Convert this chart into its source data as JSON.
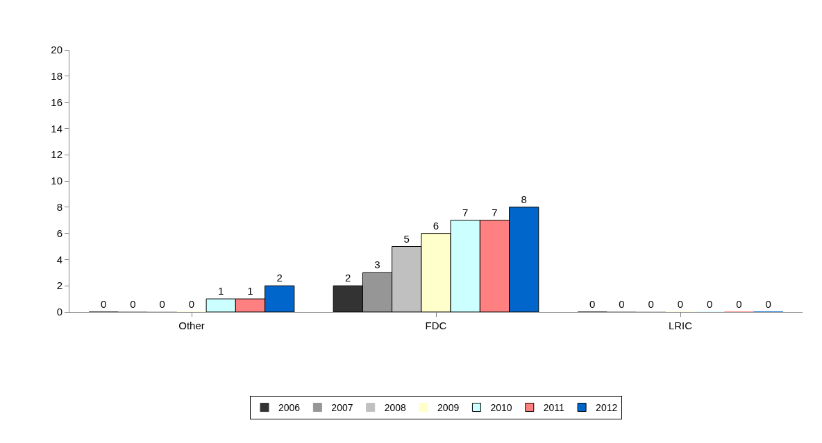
{
  "chart_data": {
    "type": "bar",
    "categories": [
      "Other",
      "FDC",
      "LRIC"
    ],
    "series": [
      {
        "name": "2006",
        "color": "#333333",
        "values": [
          0,
          2,
          0
        ]
      },
      {
        "name": "2007",
        "color": "#969696",
        "values": [
          0,
          3,
          0
        ]
      },
      {
        "name": "2008",
        "color": "#c0c0c0",
        "values": [
          0,
          5,
          0
        ]
      },
      {
        "name": "2009",
        "color": "#ffffcc",
        "values": [
          0,
          6,
          0
        ]
      },
      {
        "name": "2010",
        "color": "#ccffff",
        "values": [
          1,
          7,
          0
        ]
      },
      {
        "name": "2011",
        "color": "#ff8080",
        "values": [
          1,
          7,
          0
        ]
      },
      {
        "name": "2012",
        "color": "#0066cc",
        "values": [
          2,
          8,
          0
        ]
      }
    ],
    "ylim": [
      0,
      20
    ],
    "yticks": [
      0,
      2,
      4,
      6,
      8,
      10,
      12,
      14,
      16,
      18,
      20
    ],
    "data_labels": true,
    "grid": false,
    "legend": "bottom"
  }
}
